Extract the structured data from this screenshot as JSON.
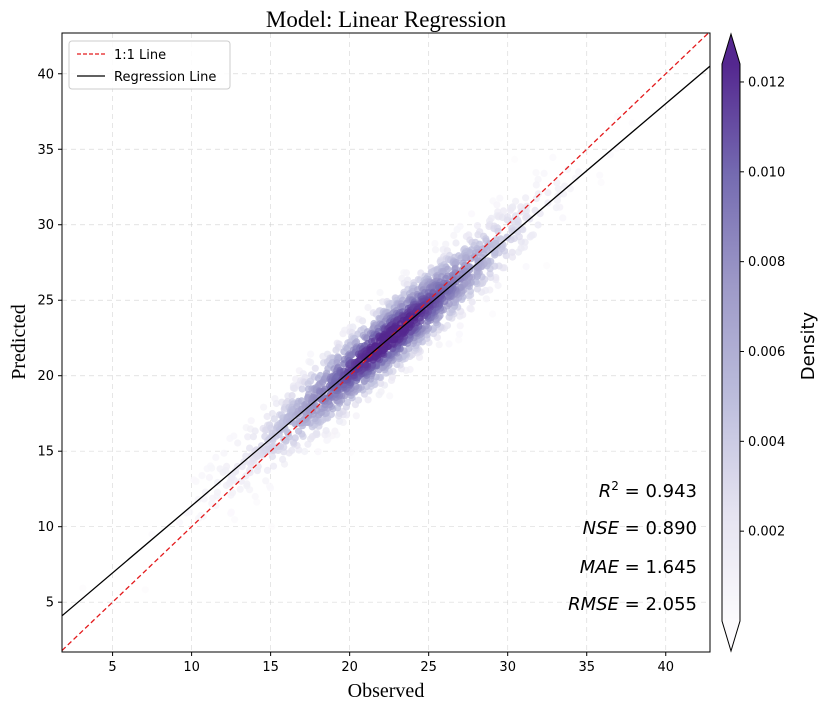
{
  "chart_data": {
    "type": "scatter",
    "title": "Model: Linear Regression",
    "xlabel": "Observed",
    "ylabel": "Predicted",
    "xlim": [
      1.8,
      42.8
    ],
    "ylim": [
      1.7,
      42.7
    ],
    "xticks": [
      5,
      10,
      15,
      20,
      25,
      30,
      35,
      40
    ],
    "yticks": [
      5,
      10,
      15,
      20,
      25,
      30,
      35,
      40
    ],
    "grid": true,
    "legend": {
      "position": "top-left",
      "entries": [
        {
          "label": "1:1 Line",
          "color": "#e31a1c",
          "style": "dashed"
        },
        {
          "label": "Regression Line",
          "color": "#000000",
          "style": "solid"
        }
      ]
    },
    "reference_line": {
      "slope": 1,
      "intercept": 0
    },
    "regression_line": {
      "slope": 0.888,
      "intercept": 2.5
    },
    "scatter": {
      "n_points": 1500,
      "x_mean": 22.5,
      "x_std": 4.8,
      "x_range": [
        2,
        41
      ],
      "residual_std": 1.4,
      "colormap": "Purples",
      "description": "Points colored by kernel density"
    },
    "colorbar": {
      "label": "Density",
      "range": [
        0.0,
        0.0124
      ],
      "ticks": [
        "0.002",
        "0.004",
        "0.006",
        "0.008",
        "0.010",
        "0.012"
      ],
      "tick_values": [
        0.002,
        0.004,
        0.006,
        0.008,
        0.01,
        0.012
      ],
      "extend": "both"
    },
    "metrics": [
      {
        "label": "R^2",
        "value": "0.943"
      },
      {
        "label": "NSE",
        "value": "0.890"
      },
      {
        "label": "MAE",
        "value": "1.645"
      },
      {
        "label": "RMSE",
        "value": "2.055"
      }
    ]
  }
}
